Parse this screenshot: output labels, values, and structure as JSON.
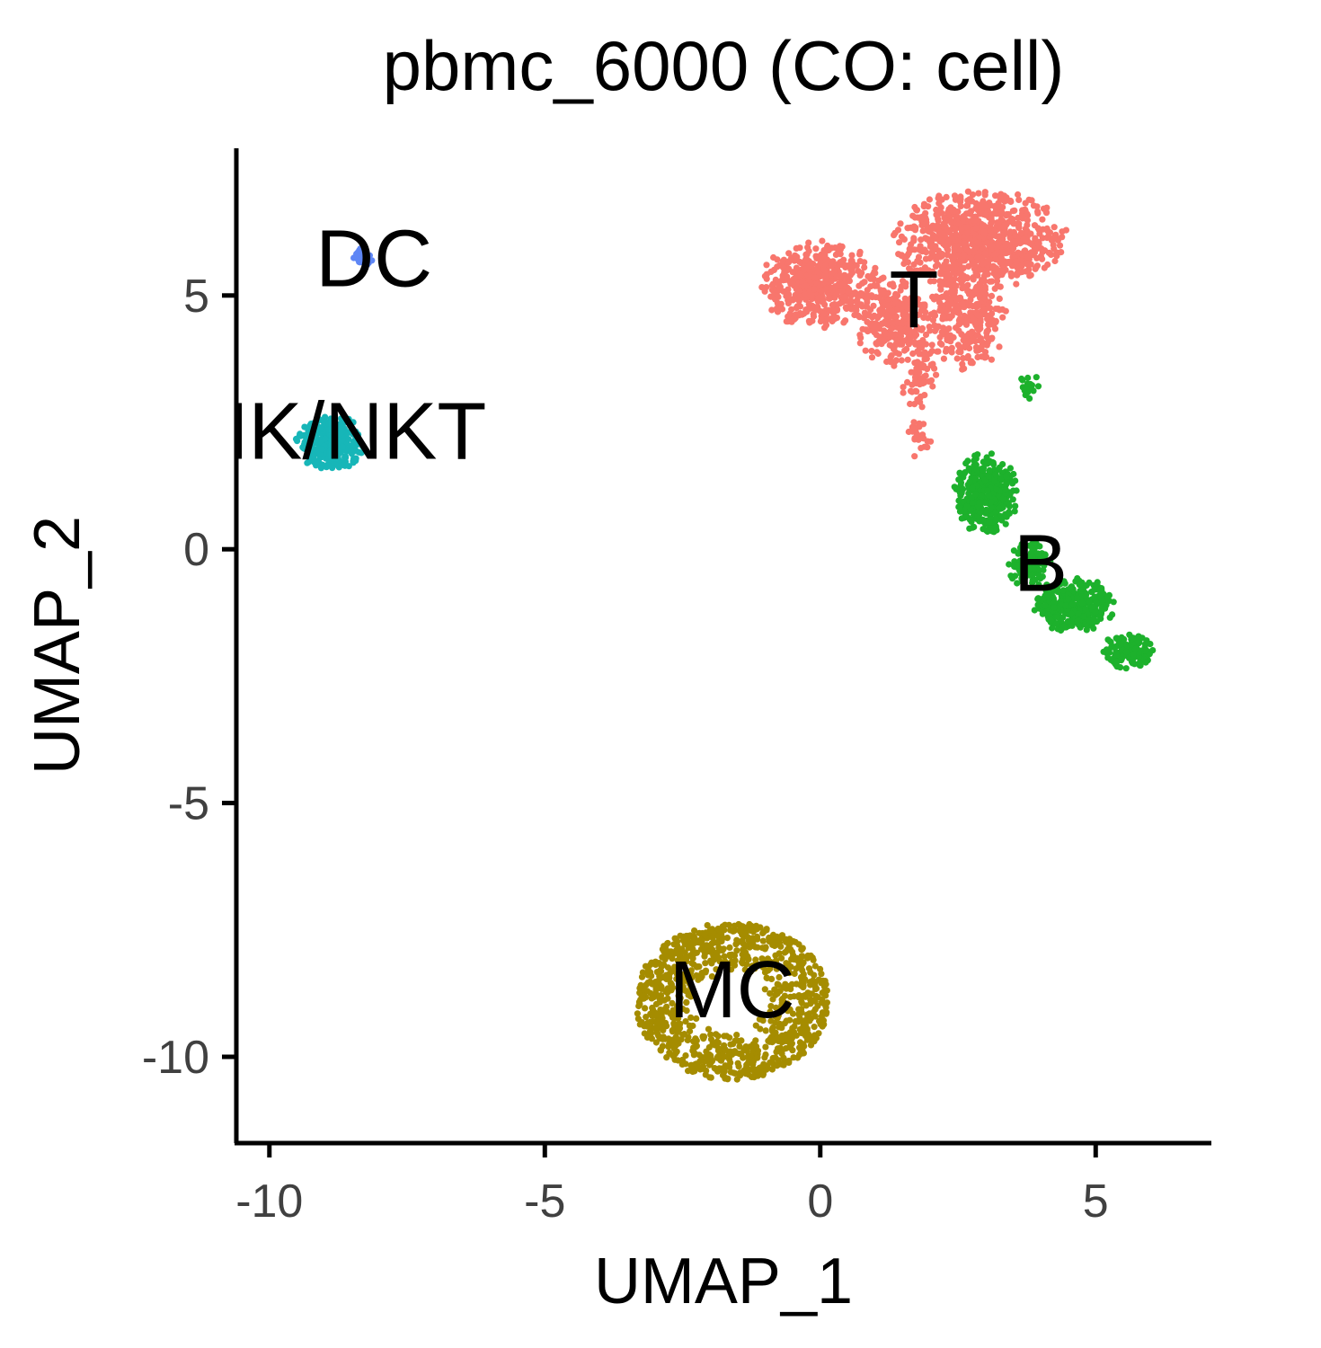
{
  "chart_data": {
    "type": "scatter",
    "title": "pbmc_6000 (CO: cell)",
    "xlabel": "UMAP_1",
    "ylabel": "UMAP_2",
    "xlim": [
      -10.6,
      7.1
    ],
    "ylim": [
      -11.7,
      7.9
    ],
    "x_ticks": [
      -10,
      -5,
      0,
      5
    ],
    "y_ticks": [
      -10,
      -5,
      0,
      5
    ],
    "x_tick_labels": [
      "-10",
      "-5",
      "0",
      "5"
    ],
    "y_tick_labels": [
      "-10",
      "-5",
      "0",
      "5"
    ],
    "grid": false,
    "legend": "none",
    "clusters": [
      {
        "name": "T",
        "color": "#F8766D",
        "label_pos": [
          1.7,
          4.8
        ],
        "blobs": [
          {
            "cx": 2.9,
            "cy": 6.1,
            "rx": 1.6,
            "ry": 1.0,
            "n": 850
          },
          {
            "cx": 0.0,
            "cy": 5.2,
            "rx": 1.1,
            "ry": 0.9,
            "n": 500
          },
          {
            "cx": 1.3,
            "cy": 4.5,
            "rx": 0.7,
            "ry": 0.9,
            "n": 250
          },
          {
            "cx": 2.6,
            "cy": 4.5,
            "rx": 0.8,
            "ry": 1.0,
            "n": 300
          },
          {
            "cx": 1.8,
            "cy": 3.4,
            "rx": 0.35,
            "ry": 0.7,
            "n": 70
          },
          {
            "cx": 1.8,
            "cy": 2.2,
            "rx": 0.25,
            "ry": 0.4,
            "n": 25
          }
        ]
      },
      {
        "name": "B",
        "color": "#1DB12C",
        "label_pos": [
          4.0,
          -0.4
        ],
        "blobs": [
          {
            "cx": 3.0,
            "cy": 1.1,
            "rx": 0.6,
            "ry": 0.8,
            "n": 380
          },
          {
            "cx": 4.6,
            "cy": -1.1,
            "rx": 0.75,
            "ry": 0.55,
            "n": 330
          },
          {
            "cx": 5.6,
            "cy": -2.0,
            "rx": 0.5,
            "ry": 0.35,
            "n": 120
          },
          {
            "cx": 3.8,
            "cy": -0.3,
            "rx": 0.4,
            "ry": 0.45,
            "n": 110
          },
          {
            "cx": 3.8,
            "cy": 3.2,
            "rx": 0.2,
            "ry": 0.3,
            "n": 18
          }
        ]
      },
      {
        "name": "NK/NKT",
        "color": "#17B6B8",
        "label_pos": [
          -8.75,
          2.2
        ],
        "blobs": [
          {
            "cx": -8.9,
            "cy": 2.1,
            "rx": 0.65,
            "ry": 0.55,
            "n": 320
          }
        ]
      },
      {
        "name": "DC",
        "color": "#5E86F5",
        "label_pos": [
          -8.1,
          5.6
        ],
        "blobs": [
          {
            "cx": -8.3,
            "cy": 5.75,
            "rx": 0.18,
            "ry": 0.18,
            "n": 35
          }
        ]
      },
      {
        "name": "MC",
        "color": "#A58C00",
        "label_pos": [
          -1.6,
          -8.8
        ],
        "ring": {
          "cx": -1.6,
          "cy": -8.9,
          "rx": 1.75,
          "ry": 1.55,
          "n": 1000
        }
      }
    ]
  }
}
